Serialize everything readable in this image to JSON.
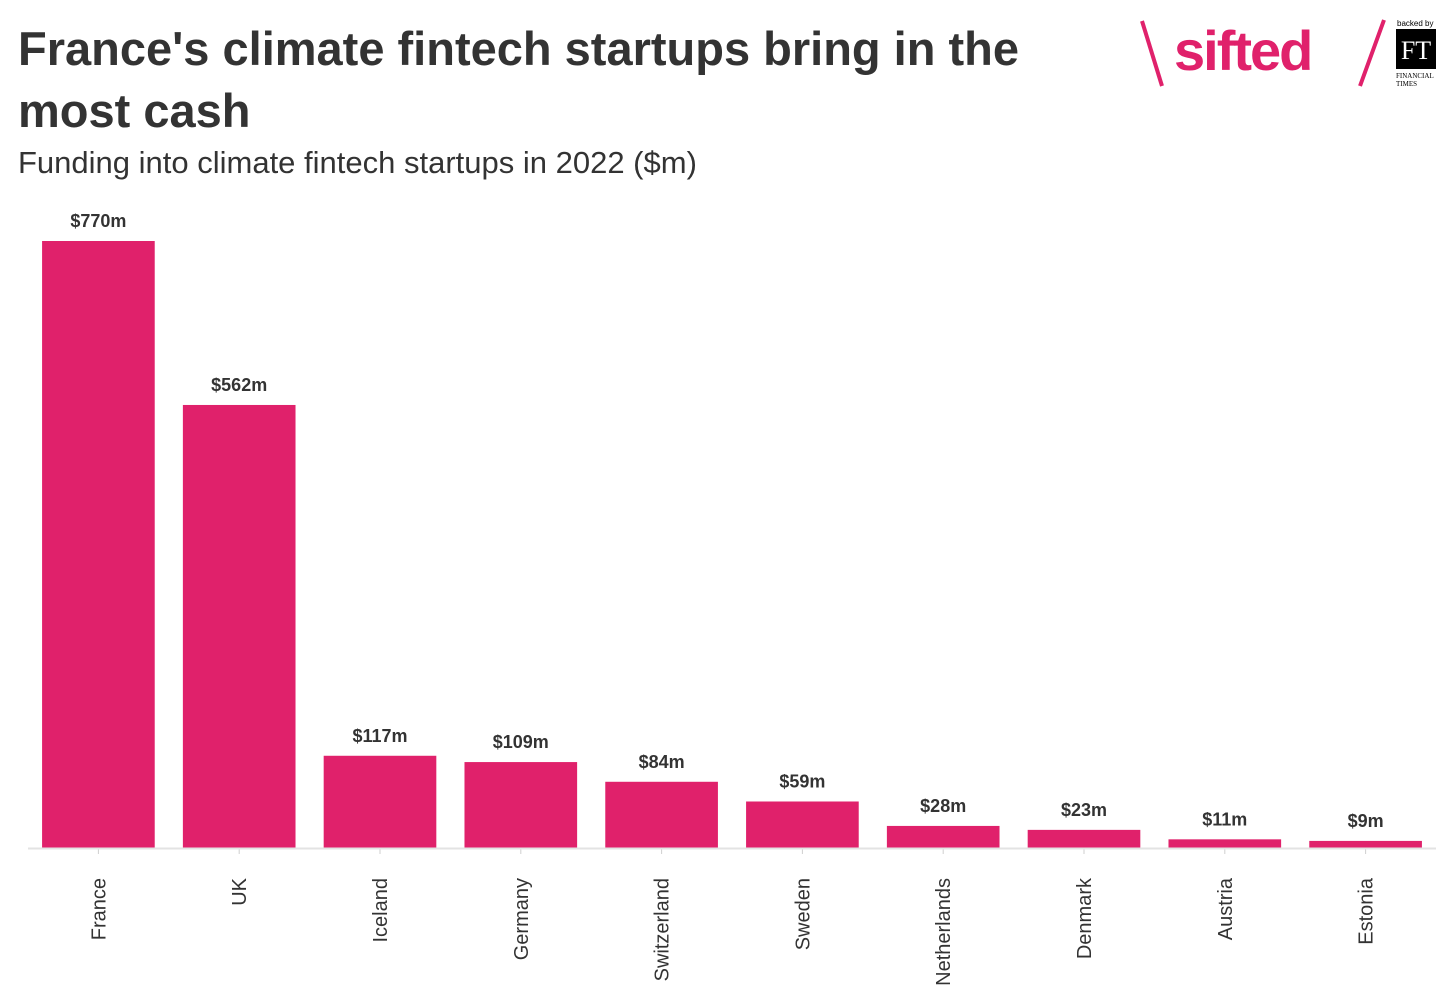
{
  "header": {
    "title": "France's climate fintech startups bring in the most cash",
    "subtitle": "Funding into climate fintech startups in 2022 ($m)"
  },
  "logo": {
    "brand": "sifted",
    "backed_by": "backed by",
    "ft_mark": "FT",
    "ft_line1": "FINANCIAL",
    "ft_line2": "TIMES",
    "brand_color": "#e0216b"
  },
  "chart_data": {
    "type": "bar",
    "categories": [
      "France",
      "UK",
      "Iceland",
      "Germany",
      "Switzerland",
      "Sweden",
      "Netherlands",
      "Denmark",
      "Austria",
      "Estonia"
    ],
    "values": [
      770,
      562,
      117,
      109,
      84,
      59,
      28,
      23,
      11,
      9
    ],
    "labels": [
      "$770m",
      "$562m",
      "$117m",
      "$109m",
      "$84m",
      "$59m",
      "$28m",
      "$23m",
      "$11m",
      "$9m"
    ],
    "ylim": [
      0,
      770
    ],
    "grid": false,
    "legend": "none",
    "bar_color": "#e0216b",
    "axis_color": "#e3e3e3"
  }
}
